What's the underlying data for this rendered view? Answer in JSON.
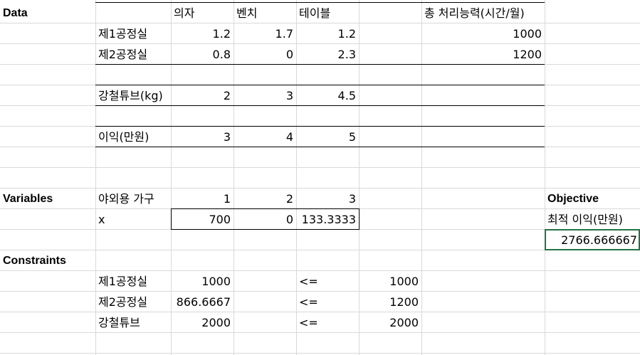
{
  "sections": {
    "data": "Data",
    "variables": "Variables",
    "constraints": "Constraints",
    "objective": "Objective"
  },
  "data_table": {
    "headers": {
      "chair": "의자",
      "bench": "벤치",
      "table": "테이블",
      "capacity": "총 처리능력(시간/월)"
    },
    "rows": [
      {
        "label": "제1공정실",
        "chair": "1.2",
        "bench": "1.7",
        "table": "1.2",
        "capacity": "1000"
      },
      {
        "label": "제2공정실",
        "chair": "0.8",
        "bench": "0",
        "table": "2.3",
        "capacity": "1200"
      }
    ],
    "steel": {
      "label": "강철튜브(kg)",
      "chair": "2",
      "bench": "3",
      "table": "4.5"
    },
    "profit": {
      "label": "이익(만원)",
      "chair": "3",
      "bench": "4",
      "table": "5"
    }
  },
  "variables": {
    "label": "야외용 가구",
    "index": [
      "1",
      "2",
      "3"
    ],
    "x_label": "x",
    "x_values": [
      "700",
      "0",
      "133.3333"
    ]
  },
  "objective": {
    "label": "최적 이익(만원)",
    "value": "2766.666667"
  },
  "constraints": [
    {
      "label": "제1공정실",
      "lhs": "1000",
      "op": "<=",
      "rhs": "1000"
    },
    {
      "label": "제2공정실",
      "lhs": "866.6667",
      "op": "<=",
      "rhs": "1200"
    },
    {
      "label": "강철튜브",
      "lhs": "2000",
      "op": "<=",
      "rhs": "2000"
    }
  ],
  "colors": {
    "gridline": "#d9d9d9",
    "selection": "#217346",
    "border": "#000000"
  }
}
